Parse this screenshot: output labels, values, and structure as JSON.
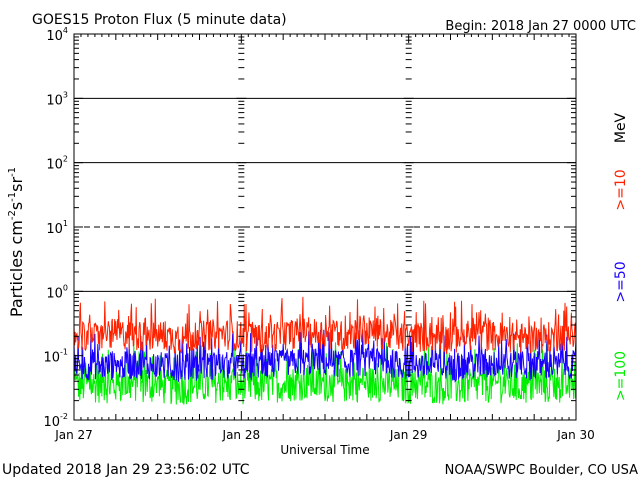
{
  "header": {
    "title": "GOES15 Proton Flux (5 minute data)",
    "begin": "Begin: 2018 Jan 27 0000 UTC"
  },
  "footer": {
    "updated": "Updated 2018 Jan 29 23:56:02 UTC",
    "credit": "NOAA/SWPC Boulder, CO USA"
  },
  "chart_data": {
    "type": "line",
    "title": "GOES15 Proton Flux (5 minute data)",
    "xlabel": "Universal Time",
    "ylabel_parts": [
      "Particles cm",
      "-2",
      "s",
      "-1",
      "sr",
      "-1"
    ],
    "y_scale": "log",
    "ylim": [
      0.01,
      10000
    ],
    "xlim_days": [
      0,
      3
    ],
    "x_ticks": [
      "Jan 27",
      "Jan 28",
      "Jan 29",
      "Jan 30"
    ],
    "y_ticks": [
      {
        "base": "10",
        "exp": "-2",
        "value": 0.01
      },
      {
        "base": "10",
        "exp": "-1",
        "value": 0.1
      },
      {
        "base": "10",
        "exp": "0",
        "value": 1
      },
      {
        "base": "10",
        "exp": "1",
        "value": 10
      },
      {
        "base": "10",
        "exp": "2",
        "value": 100
      },
      {
        "base": "10",
        "exp": "3",
        "value": 1000
      },
      {
        "base": "10",
        "exp": "4",
        "value": 10000
      }
    ],
    "threshold_lines": [
      {
        "value": 1,
        "style": "solid"
      },
      {
        "value": 10,
        "style": "dashed"
      },
      {
        "value": 100,
        "style": "solid"
      },
      {
        "value": 1000,
        "style": "solid"
      }
    ],
    "unit_label": "MeV",
    "series": [
      {
        "name": ">=10",
        "color": "#ff2200",
        "baseline": 0.2,
        "spread": 0.24,
        "x_days": [
          0,
          0.125,
          0.25,
          0.375,
          0.5,
          0.625,
          0.75,
          0.875,
          1,
          1.125,
          1.25,
          1.375,
          1.5,
          1.625,
          1.75,
          1.875,
          2,
          2.125,
          2.25,
          2.375,
          2.5,
          2.625,
          2.75,
          2.875,
          3
        ],
        "values": [
          0.21,
          0.19,
          0.22,
          0.2,
          0.21,
          0.18,
          0.2,
          0.22,
          0.2,
          0.19,
          0.21,
          0.23,
          0.22,
          0.2,
          0.24,
          0.21,
          0.19,
          0.2,
          0.18,
          0.21,
          0.2,
          0.19,
          0.18,
          0.2,
          0.21
        ]
      },
      {
        "name": ">=50",
        "color": "#1a00ff",
        "baseline": 0.07,
        "spread": 0.22,
        "x_days": [
          0,
          0.125,
          0.25,
          0.375,
          0.5,
          0.625,
          0.75,
          0.875,
          1,
          1.125,
          1.25,
          1.375,
          1.5,
          1.625,
          1.75,
          1.875,
          2,
          2.125,
          2.25,
          2.375,
          2.5,
          2.625,
          2.75,
          2.875,
          3
        ],
        "values": [
          0.065,
          0.07,
          0.068,
          0.072,
          0.07,
          0.065,
          0.068,
          0.07,
          0.068,
          0.07,
          0.075,
          0.08,
          0.078,
          0.075,
          0.08,
          0.076,
          0.07,
          0.068,
          0.065,
          0.07,
          0.072,
          0.07,
          0.068,
          0.07,
          0.072
        ]
      },
      {
        "name": ">=100",
        "color": "#00ee00",
        "baseline": 0.033,
        "spread": 0.28,
        "x_days": [
          0,
          0.125,
          0.25,
          0.375,
          0.5,
          0.625,
          0.75,
          0.875,
          1,
          1.125,
          1.25,
          1.375,
          1.5,
          1.625,
          1.75,
          1.875,
          2,
          2.125,
          2.25,
          2.375,
          2.5,
          2.625,
          2.75,
          2.875,
          3
        ],
        "values": [
          0.033,
          0.035,
          0.034,
          0.036,
          0.033,
          0.032,
          0.034,
          0.035,
          0.033,
          0.034,
          0.036,
          0.038,
          0.036,
          0.035,
          0.037,
          0.035,
          0.033,
          0.034,
          0.032,
          0.033,
          0.035,
          0.034,
          0.033,
          0.034,
          0.035
        ]
      }
    ]
  }
}
